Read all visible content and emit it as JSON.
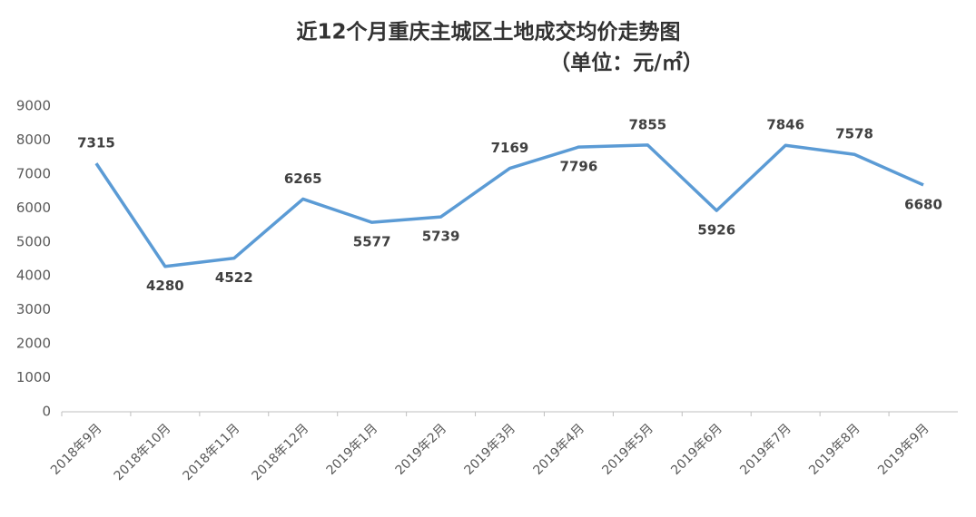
{
  "chart_data": {
    "type": "line",
    "title": "近12个月重庆主城区土地成交均价走势图",
    "subtitle": "（单位：元/㎡）",
    "categories": [
      "2018年9月",
      "2018年10月",
      "2018年11月",
      "2018年12月",
      "2019年1月",
      "2019年2月",
      "2019年3月",
      "2019年4月",
      "2019年5月",
      "2019年6月",
      "2019年7月",
      "2019年8月",
      "2019年9月"
    ],
    "series": [
      {
        "color": "#5b9bd5",
        "values": [
          7315,
          4280,
          4522,
          6265,
          5577,
          5739,
          7169,
          7796,
          7855,
          5926,
          7846,
          7578,
          6680
        ]
      }
    ],
    "ylim": [
      0,
      9000
    ],
    "yticks": [
      0,
      1000,
      2000,
      3000,
      4000,
      5000,
      6000,
      7000,
      8000,
      9000
    ],
    "grid": false
  }
}
